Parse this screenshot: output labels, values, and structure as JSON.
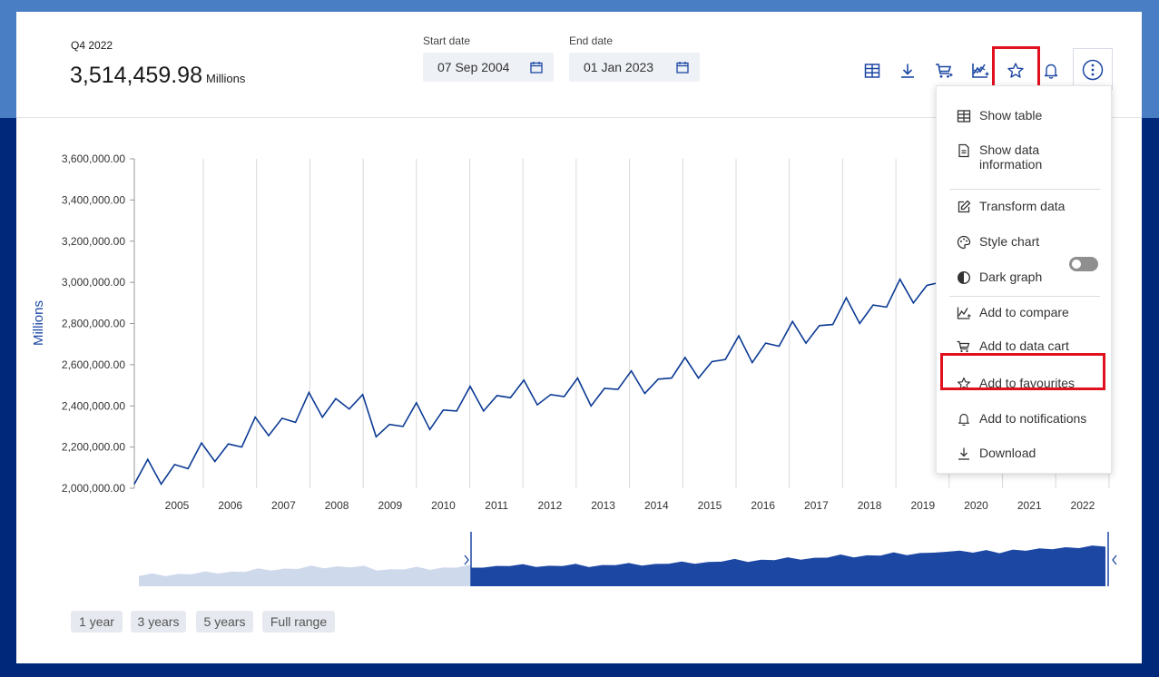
{
  "summary": {
    "period": "Q4 2022",
    "value": "3,514,459.98",
    "unit": "Millions"
  },
  "dates": {
    "start_label": "Start date",
    "start_value": "07 Sep 2004",
    "end_label": "End date",
    "end_value": "01 Jan 2023"
  },
  "toolbar": {
    "icons": [
      "table-icon",
      "download-icon",
      "cart-icon",
      "compare-icon",
      "star-icon",
      "bell-icon",
      "more-vertical-icon"
    ],
    "accent": "#003da5"
  },
  "menu": {
    "items": [
      {
        "label": "Show table",
        "icon": "table-icon"
      },
      {
        "label": "Show data information",
        "icon": "document-icon"
      },
      {
        "label": "Transform data",
        "icon": "edit-icon"
      },
      {
        "label": "Style chart",
        "icon": "palette-icon"
      },
      {
        "label": "Dark graph",
        "icon": "contrast-icon"
      },
      {
        "label": "Add to compare",
        "icon": "compare-icon"
      },
      {
        "label": "Add to data cart",
        "icon": "cart-icon"
      },
      {
        "label": "Add to favourites",
        "icon": "star-icon"
      },
      {
        "label": "Add to notifications",
        "icon": "bell-icon"
      },
      {
        "label": "Download",
        "icon": "download-icon"
      }
    ],
    "dark_graph_on": false
  },
  "range_buttons": [
    "1 year",
    "3 years",
    "5 years",
    "Full range"
  ],
  "colors": {
    "line": "#0b3a93",
    "highlight": "#e0101e",
    "navigator_fill": "#1c47a3",
    "navigator_fill_light": "#cfd9ec"
  },
  "chart_data": {
    "type": "line",
    "ylabel": "Millions",
    "ylim": [
      2000000,
      3600000
    ],
    "yticks": [
      "2,000,000.00",
      "2,200,000.00",
      "2,400,000.00",
      "2,600,000.00",
      "2,800,000.00",
      "3,000,000.00",
      "3,200,000.00",
      "3,400,000.00",
      "3,600,000.00"
    ],
    "xlabels": [
      "2005",
      "2006",
      "2007",
      "2008",
      "2009",
      "2010",
      "2011",
      "2012",
      "2013",
      "2014",
      "2015",
      "2016",
      "2017",
      "2018",
      "2019",
      "2020",
      "2021",
      "2022"
    ],
    "grid": "vertical",
    "series": [
      {
        "values": [
          2020000,
          2140000,
          2020000,
          2115000,
          2095000,
          2220000,
          2130000,
          2215000,
          2200000,
          2345000,
          2255000,
          2340000,
          2320000,
          2465000,
          2345000,
          2435000,
          2385000,
          2455000,
          2250000,
          2310000,
          2300000,
          2415000,
          2285000,
          2380000,
          2375000,
          2495000,
          2375000,
          2450000,
          2440000,
          2525000,
          2405000,
          2455000,
          2445000,
          2535000,
          2400000,
          2485000,
          2480000,
          2570000,
          2460000,
          2530000,
          2535000,
          2635000,
          2535000,
          2615000,
          2625000,
          2740000,
          2610000,
          2705000,
          2690000,
          2810000,
          2705000,
          2790000,
          2795000,
          2925000,
          2800000,
          2890000,
          2880000,
          3015000,
          2900000,
          2985000,
          3000000
        ]
      }
    ]
  }
}
